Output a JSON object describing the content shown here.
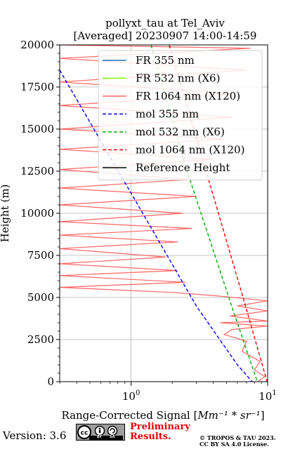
{
  "chart_data": {
    "type": "line",
    "title": "pollyxt_tau at Tel_Aviv",
    "subtitle": "[Averaged] 20230907 14:00-14:59",
    "xlabel_text": "Range-Corrected Signal [",
    "xlabel_math": "Mm⁻¹ * sr⁻¹",
    "xlabel_close": "]",
    "ylabel": "Height (m)",
    "xscale": "log",
    "xlim": [
      0.3,
      10
    ],
    "ylim": [
      0,
      20000
    ],
    "x_ticks": [
      {
        "value": 1,
        "label": "10",
        "exp": "0"
      },
      {
        "value": 10,
        "label": "10",
        "exp": "1"
      }
    ],
    "y_ticks": [
      0,
      2500,
      5000,
      7500,
      10000,
      12500,
      15000,
      17500,
      20000
    ],
    "y_tick_labels": [
      "0",
      "2500",
      "5000",
      "7500",
      "10000",
      "12500",
      "15000",
      "17500",
      "20000"
    ],
    "grid": true,
    "legend_position": "top-right",
    "series": [
      {
        "name": "FR 355 nm",
        "color": "#1f77b4",
        "style": "solid",
        "points": []
      },
      {
        "name": "FR 532 nm (X6)",
        "color": "#80ff00",
        "style": "solid",
        "points": []
      },
      {
        "name": "FR 1064 nm (X120)",
        "color": "#ff6464",
        "style": "solid",
        "points": [
          [
            8.5,
            0
          ],
          [
            9.5,
            300
          ],
          [
            8.0,
            700
          ],
          [
            8.8,
            1200
          ],
          [
            6.5,
            1800
          ],
          [
            7.0,
            2400
          ],
          [
            4.8,
            2800
          ],
          [
            5.5,
            3100
          ],
          [
            10.0,
            3300
          ],
          [
            4.5,
            3500
          ],
          [
            10.0,
            3600
          ],
          [
            5.3,
            3900
          ],
          [
            10.0,
            4200
          ],
          [
            6.0,
            4500
          ],
          [
            10.0,
            4800
          ],
          [
            4.2,
            5100
          ],
          [
            2.0,
            5300
          ],
          [
            0.3,
            5600
          ],
          [
            2.5,
            5900
          ],
          [
            0.3,
            6300
          ],
          [
            2.2,
            6600
          ],
          [
            0.3,
            7000
          ],
          [
            1.8,
            7400
          ],
          [
            0.3,
            7900
          ],
          [
            2.2,
            8300
          ],
          [
            0.3,
            8700
          ],
          [
            2.8,
            9100
          ],
          [
            0.3,
            9500
          ],
          [
            2.4,
            10000
          ],
          [
            0.3,
            10500
          ],
          [
            3.0,
            11000
          ],
          [
            0.3,
            11500
          ],
          [
            2.6,
            12000
          ],
          [
            0.3,
            12600
          ],
          [
            4.0,
            13200
          ],
          [
            0.3,
            13800
          ],
          [
            4.8,
            14400
          ],
          [
            0.3,
            15000
          ],
          [
            5.5,
            15700
          ],
          [
            0.3,
            16400
          ],
          [
            6.0,
            17100
          ],
          [
            0.3,
            17800
          ],
          [
            7.0,
            18500
          ],
          [
            0.3,
            19200
          ],
          [
            7.5,
            19800
          ],
          [
            0.3,
            20000
          ]
        ]
      },
      {
        "name": "mol 355 nm",
        "color": "#0000ff",
        "style": "dashed",
        "points": [
          [
            0.3,
            18500
          ],
          [
            1.0,
            11200
          ],
          [
            3.0,
            4500
          ],
          [
            6.0,
            1000
          ],
          [
            7.7,
            0
          ]
        ]
      },
      {
        "name": "mol 532 nm (X6)",
        "color": "#00b000",
        "style": "dashed",
        "points": [
          [
            1.4,
            20000
          ],
          [
            2.5,
            12800
          ],
          [
            5.5,
            4400
          ],
          [
            8.4,
            0
          ]
        ]
      },
      {
        "name": "mol 1064 nm (X120)",
        "color": "#ff0000",
        "style": "dashed",
        "points": [
          [
            1.9,
            20000
          ],
          [
            3.4,
            13000
          ],
          [
            6.5,
            5200
          ],
          [
            9.9,
            0
          ]
        ]
      },
      {
        "name": "Reference Height",
        "color": "#000000",
        "style": "solid",
        "points": []
      }
    ]
  },
  "footer": {
    "version": "Version: 3.6",
    "license_badge": "CC BY SA",
    "license_by": "BY",
    "license_sa": "SA",
    "preliminary_line1": "Preliminary",
    "preliminary_line2": "Results.",
    "copyright_line1": "© TROPOS & TAU 2023.",
    "copyright_line2": "CC BY SA 4.0 License."
  }
}
